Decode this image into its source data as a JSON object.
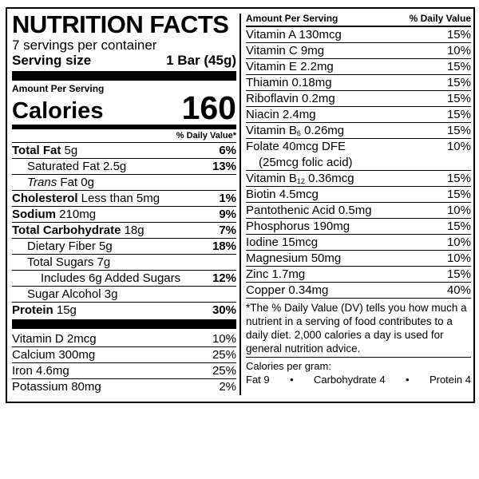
{
  "panel": {
    "title": "NUTRITION FACTS",
    "servings": "7 servings per container",
    "serving_size_label": "Serving size",
    "serving_size_value": "1 Bar (45g)",
    "amount_per_serving": "Amount Per Serving",
    "calories_label": "Calories",
    "calories_value": "160",
    "dv_header": "% Daily Value*",
    "nutrients": [
      {
        "bold": "Total Fat",
        "rest": " 5g",
        "dv": "6%"
      },
      {
        "bold": "",
        "rest": "Saturated Fat 2.5g",
        "dv": "13%"
      },
      {
        "italic": "Trans",
        "rest": " Fat 0g",
        "dv": ""
      },
      {
        "bold": "Cholesterol",
        "rest": " Less than 5mg",
        "dv": "1%"
      },
      {
        "bold": "Sodium",
        "rest": " 210mg",
        "dv": "9%"
      },
      {
        "bold": "Total Carbohydrate",
        "rest": " 18g",
        "dv": "7%"
      },
      {
        "bold": "",
        "rest": "Dietary Fiber 5g",
        "dv": "18%"
      },
      {
        "bold": "",
        "rest": "Total Sugars 7g",
        "dv": ""
      },
      {
        "bold": "",
        "rest": "Includes 6g Added Sugars",
        "dv": "12%"
      },
      {
        "bold": "",
        "rest": "Sugar Alcohol 3g",
        "dv": ""
      },
      {
        "bold": "Protein",
        "rest": " 15g",
        "dv": "30%"
      }
    ],
    "vitamins_left": [
      {
        "label": "Vitamin D 2mcg",
        "dv": "10%"
      },
      {
        "label": "Calcium 300mg",
        "dv": "25%"
      },
      {
        "label": "Iron 4.6mg",
        "dv": "25%"
      },
      {
        "label": "Potassium 80mg",
        "dv": "2%"
      }
    ]
  },
  "right": {
    "header_left": "Amount Per Serving",
    "header_right": "% Daily Value",
    "rows": [
      {
        "label": "Vitamin A  130mcg",
        "dv": "15%"
      },
      {
        "label": "Vitamin C  9mg",
        "dv": "10%"
      },
      {
        "label": "Vitamin E  2.2mg",
        "dv": "15%"
      },
      {
        "label": "Thiamin  0.18mg",
        "dv": "15%"
      },
      {
        "label": "Riboflavin  0.2mg",
        "dv": "15%"
      },
      {
        "label": "Niacin  2.4mg",
        "dv": "15%"
      },
      {
        "label_main": "Vitamin B",
        "label_sub": "6",
        "label_rest": "  0.26mg",
        "dv": "15%"
      },
      {
        "label": "Folate  40mcg DFE",
        "label_line2": "(25mcg folic acid)",
        "dv": "10%"
      },
      {
        "label_main": "Vitamin B",
        "label_sub": "12",
        "label_rest": "  0.36mcg",
        "dv": "15%"
      },
      {
        "label": "Biotin  4.5mcg",
        "dv": "15%"
      },
      {
        "label": "Pantothenic Acid  0.5mg",
        "dv": "10%"
      },
      {
        "label": "Phosphorus  190mg",
        "dv": "15%"
      },
      {
        "label": "Iodine  15mcg",
        "dv": "10%"
      },
      {
        "label": "Magnesium  50mg",
        "dv": "10%"
      },
      {
        "label": "Zinc  1.7mg",
        "dv": "15%"
      },
      {
        "label": "Copper  0.34mg",
        "dv": "40%"
      }
    ],
    "footnote": "*The % Daily Value (DV) tells you how much a nutrient in a serving of food contributes to a daily diet. 2,000 calories a day is used for general nutrition advice.",
    "calories_per_gram_label": "Calories per gram:",
    "cpg_fat": "Fat 9",
    "cpg_carb": "Carbohydrate 4",
    "cpg_protein": "Protein 4",
    "bullet": "•"
  }
}
